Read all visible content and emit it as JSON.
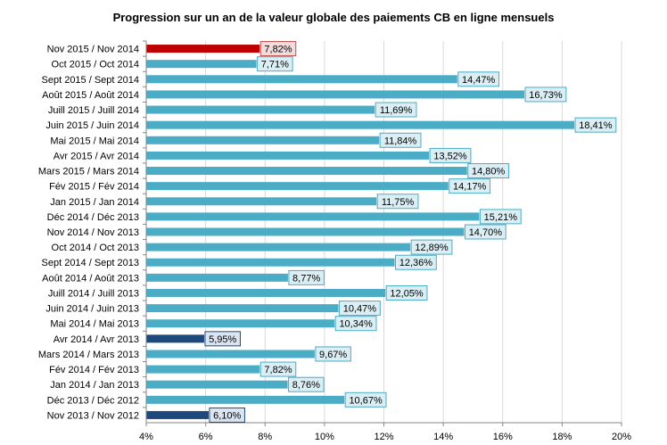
{
  "chart_data": {
    "type": "bar",
    "orientation": "horizontal",
    "title": "Progression sur un an  de la valeur globale des paiements CB en ligne mensuels",
    "xlabel": "",
    "ylabel": "",
    "xlim": [
      4,
      20
    ],
    "x_ticks": [
      "4%",
      "6%",
      "8%",
      "10%",
      "12%",
      "14%",
      "16%",
      "18%",
      "20%"
    ],
    "grid": "vertical",
    "legend": "none",
    "categories": [
      "Nov 2015 / Nov 2014",
      "Oct 2015 / Oct 2014",
      "Sept 2015 / Sept 2014",
      "Août 2015 / Août 2014",
      "Juill 2015 / Juill 2014",
      "Juin 2015 / Juin 2014",
      "Mai 2015 / Mai 2014",
      "Avr 2015 / Avr 2014",
      "Mars 2015 / Mars 2014",
      "Fév 2015 / Fév 2014",
      "Jan 2015 / Jan 2014",
      "Déc 2014 / Déc 2013",
      "Nov 2014 / Nov 2013",
      "Oct 2014 / Oct 2013",
      "Sept 2014 / Sept 2013",
      "Août 2014 / Août 2013",
      "Juill 2014 / Juill 2013",
      "Juin 2014 / Juin 2013",
      "Mai 2014 / Mai 2013",
      "Avr 2014 / Avr 2013",
      "Mars 2014 / Mars 2013",
      "Fév 2014 / Fév 2013",
      "Jan 2014 / Jan 2013",
      "Déc 2013 / Déc 2012",
      "Nov 2013 / Nov 2012"
    ],
    "values": [
      7.82,
      7.71,
      14.47,
      16.73,
      11.69,
      18.41,
      11.84,
      13.52,
      14.8,
      14.17,
      11.75,
      15.21,
      14.7,
      12.89,
      12.36,
      8.77,
      12.05,
      10.47,
      10.34,
      5.95,
      9.67,
      7.82,
      8.76,
      10.67,
      6.1
    ],
    "data_labels": [
      "7,82%",
      "7,71%",
      "14,47%",
      "16,73%",
      "11,69%",
      "18,41%",
      "11,84%",
      "13,52%",
      "14,80%",
      "14,17%",
      "11,75%",
      "15,21%",
      "14,70%",
      "12,89%",
      "12,36%",
      "8,77%",
      "12,05%",
      "10,47%",
      "10,34%",
      "5,95%",
      "9,67%",
      "7,82%",
      "8,76%",
      "10,67%",
      "6,10%"
    ],
    "bar_colors": [
      "#c00000",
      "#4bacc6",
      "#4bacc6",
      "#4bacc6",
      "#4bacc6",
      "#4bacc6",
      "#4bacc6",
      "#4bacc6",
      "#4bacc6",
      "#4bacc6",
      "#4bacc6",
      "#4bacc6",
      "#4bacc6",
      "#4bacc6",
      "#4bacc6",
      "#4bacc6",
      "#4bacc6",
      "#4bacc6",
      "#4bacc6",
      "#1f497d",
      "#4bacc6",
      "#4bacc6",
      "#4bacc6",
      "#4bacc6",
      "#1f497d"
    ],
    "label_fills": [
      "#f2dcdb",
      "#dbeef4",
      "#dbeef4",
      "#dbeef4",
      "#dbeef4",
      "#dbeef4",
      "#dbeef4",
      "#dbeef4",
      "#dbeef4",
      "#dbeef4",
      "#dbeef4",
      "#dbeef4",
      "#dbeef4",
      "#dbeef4",
      "#dbeef4",
      "#dbeef4",
      "#dbeef4",
      "#dbeef4",
      "#dbeef4",
      "#dbe5f1",
      "#dbeef4",
      "#dbeef4",
      "#dbeef4",
      "#dbeef4",
      "#dbe5f1"
    ],
    "label_borders": [
      "#c0504d",
      "#4bacc6",
      "#4bacc6",
      "#4bacc6",
      "#4bacc6",
      "#4bacc6",
      "#4bacc6",
      "#4bacc6",
      "#4bacc6",
      "#4bacc6",
      "#4bacc6",
      "#4bacc6",
      "#4bacc6",
      "#4bacc6",
      "#4bacc6",
      "#4bacc6",
      "#4bacc6",
      "#4bacc6",
      "#4bacc6",
      "#1f497d",
      "#4bacc6",
      "#4bacc6",
      "#4bacc6",
      "#4bacc6",
      "#1f497d"
    ]
  }
}
